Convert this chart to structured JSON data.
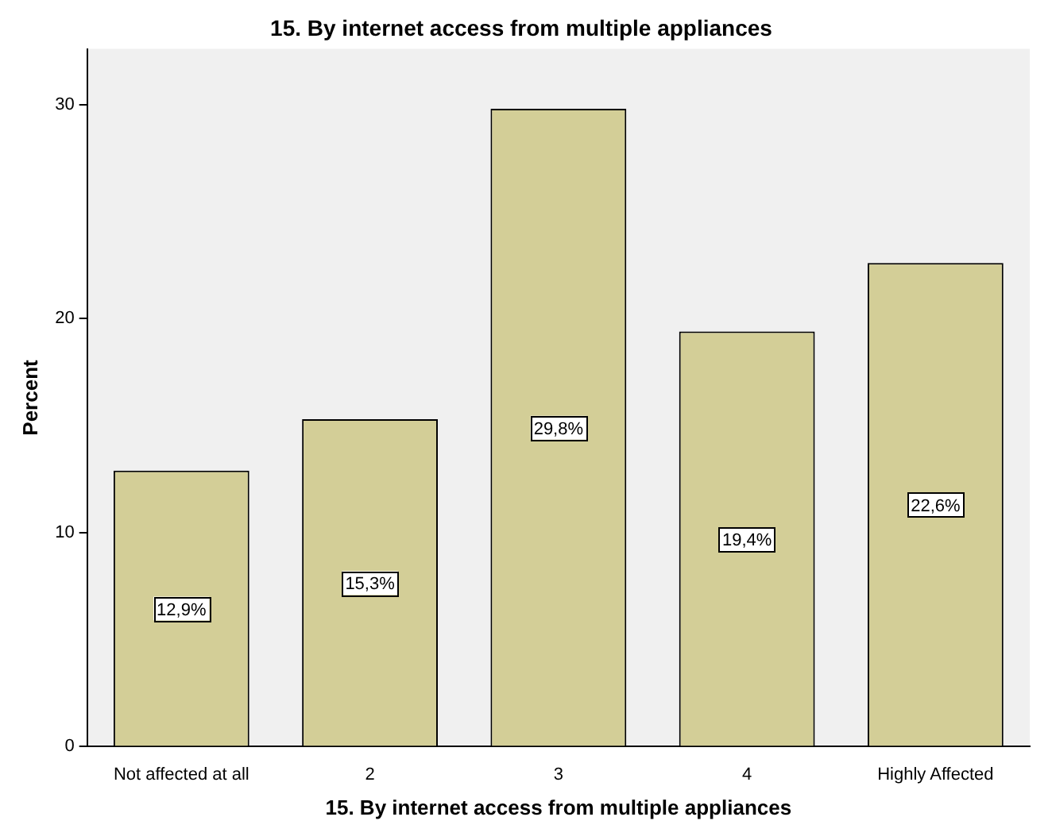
{
  "chart_data": {
    "type": "bar",
    "title": "15. By internet access from multiple appliances",
    "xlabel": "15. By internet access from multiple appliances",
    "ylabel": "Percent",
    "categories": [
      "Not affected at all",
      "2",
      "3",
      "4",
      "Highly Affected"
    ],
    "values": [
      12.9,
      15.3,
      29.8,
      19.4,
      22.6
    ],
    "value_labels": [
      "12,9%",
      "15,3%",
      "29,8%",
      "19,4%",
      "22,6%"
    ],
    "color": "#d3ce97",
    "ylim": [
      0,
      32.6
    ],
    "yticks": [
      0,
      10,
      20,
      30
    ],
    "grid": false,
    "legend": false
  }
}
